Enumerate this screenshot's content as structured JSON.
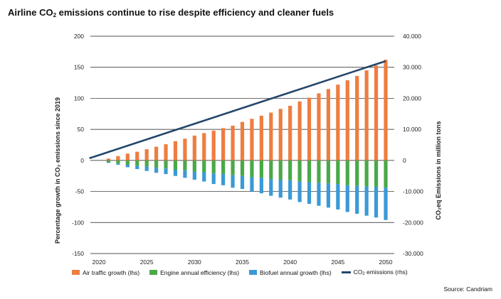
{
  "title": {
    "pre": "Airline CO",
    "sub": "2",
    "post": " emissions continue to rise despite efficiency and cleaner fuels"
  },
  "axes": {
    "left_title": "Percentage growth in CO₂ emissions since 2019",
    "right_title": "CO₂eq Emissions in million tons"
  },
  "legend": {
    "air_traffic": "Air traffic growth (lhs)",
    "engine": "Engine annual efficiency (lhs)",
    "biofuel": "Biofuel annual growth (lhs)",
    "co2_pre": "CO",
    "co2_sub": "2",
    "co2_post": " emissions (rhs)"
  },
  "source": "Source: Candriam",
  "colors": {
    "air_traffic": "#ee7d40",
    "engine": "#4aa849",
    "biofuel": "#3a9ad6",
    "co2_line": "#24476b"
  },
  "chart_data": {
    "type": "bar",
    "x": [
      2020,
      2021,
      2022,
      2023,
      2024,
      2025,
      2026,
      2027,
      2028,
      2029,
      2030,
      2031,
      2032,
      2033,
      2034,
      2035,
      2036,
      2037,
      2038,
      2039,
      2040,
      2041,
      2042,
      2043,
      2044,
      2045,
      2046,
      2047,
      2048,
      2049,
      2050
    ],
    "xticks": [
      2020,
      2025,
      2030,
      2035,
      2040,
      2045,
      2050
    ],
    "yticks_left": [
      200,
      150,
      100,
      50,
      0,
      -50,
      -100,
      -150
    ],
    "ylim_left": [
      -150,
      200
    ],
    "yticks_right_labels": [
      "40.000",
      "30.000",
      "20.000",
      "10.000",
      "0",
      "-10.000",
      "-20.000",
      "-30.000"
    ],
    "ylim_right": [
      -30000,
      40000
    ],
    "series": [
      {
        "name": "Air traffic growth (lhs)",
        "kind": "bar",
        "values": [
          0,
          3,
          7,
          11,
          14,
          18,
          22,
          26,
          31,
          35,
          40,
          44,
          48,
          52,
          56,
          62,
          67,
          72,
          77,
          83,
          88,
          95,
          101,
          108,
          115,
          122,
          129,
          136,
          145,
          153,
          162
        ]
      },
      {
        "name": "Engine annual efficiency (lhs)",
        "kind": "bar",
        "values": [
          0,
          -3,
          -5,
          -7,
          -9,
          -10,
          -12,
          -13,
          -15,
          -16,
          -18,
          -19,
          -21,
          -22,
          -24,
          -25,
          -27,
          -28,
          -30,
          -31,
          -32,
          -34,
          -35,
          -36,
          -37,
          -38,
          -40,
          -41,
          -42,
          -43,
          -44
        ]
      },
      {
        "name": "Biofuel annual growth (lhs)",
        "kind": "bar",
        "values": [
          0,
          -1,
          -2,
          -4,
          -5,
          -7,
          -8,
          -9,
          -10,
          -12,
          -13,
          -15,
          -17,
          -18,
          -20,
          -21,
          -23,
          -25,
          -27,
          -29,
          -31,
          -33,
          -35,
          -37,
          -39,
          -41,
          -43,
          -45,
          -47,
          -49,
          -52
        ]
      },
      {
        "name": "CO₂ emissions (rhs)",
        "kind": "line",
        "axis": "right",
        "x": [
          2019,
          2050
        ],
        "values": [
          700,
          32000
        ]
      }
    ]
  }
}
